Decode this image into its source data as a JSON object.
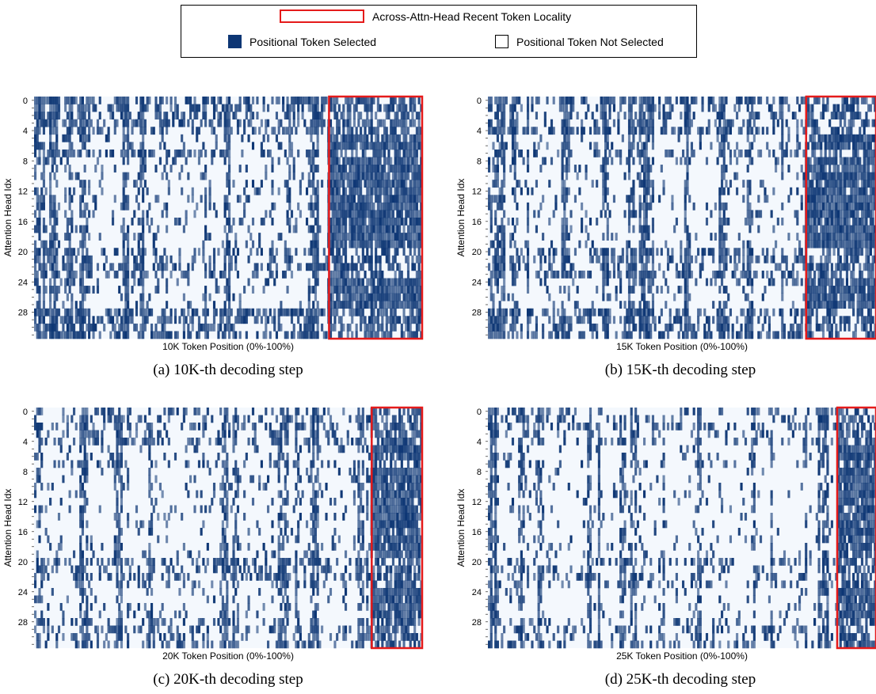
{
  "legend": {
    "locality_label": "Across-Attn-Head Recent Token Locality",
    "selected_label": "Positional Token Selected",
    "not_selected_label": "Positional Token Not Selected"
  },
  "colors": {
    "selected": "#0d3674",
    "not_selected": "#f4f8fd",
    "locality_box": "#e51a1a"
  },
  "chart_data": [
    {
      "type": "heatmap",
      "caption": "(a) 10K-th decoding step",
      "xlabel": "10K Token Position (0%-100%)",
      "ylabel": "Attention Head Idx",
      "y_ticks": [
        0,
        4,
        8,
        12,
        16,
        20,
        24,
        28
      ],
      "num_heads": 32,
      "x_range_percent": [
        0,
        100
      ],
      "recent_locality_region_percent": [
        76,
        100
      ],
      "dense_selection_heads": [
        5,
        6,
        8,
        9,
        10,
        11,
        12,
        13,
        14,
        15,
        16,
        17,
        18,
        19,
        24,
        25,
        26,
        27
      ]
    },
    {
      "type": "heatmap",
      "caption": "(b) 15K-th decoding step",
      "xlabel": "15K Token Position (0%-100%)",
      "ylabel": "Attention Head Idx",
      "y_ticks": [
        0,
        4,
        8,
        12,
        16,
        20,
        24,
        28
      ],
      "num_heads": 32,
      "x_range_percent": [
        0,
        100
      ],
      "recent_locality_region_percent": [
        82,
        100
      ],
      "dense_selection_heads": [
        5,
        6,
        8,
        9,
        10,
        11,
        12,
        13,
        14,
        15,
        16,
        17,
        18,
        19,
        24,
        25,
        26,
        27
      ]
    },
    {
      "type": "heatmap",
      "caption": "(c) 20K-th decoding step",
      "xlabel": "20K Token Position (0%-100%)",
      "ylabel": "Attention Head Idx",
      "y_ticks": [
        0,
        4,
        8,
        12,
        16,
        20,
        24,
        28
      ],
      "num_heads": 32,
      "x_range_percent": [
        0,
        100
      ],
      "recent_locality_region_percent": [
        87,
        100
      ],
      "dense_selection_heads": [
        5,
        6,
        8,
        9,
        10,
        11,
        12,
        13,
        14,
        15,
        16,
        17,
        18,
        19,
        24,
        25,
        26,
        27
      ]
    },
    {
      "type": "heatmap",
      "caption": "(d) 25K-th decoding step",
      "xlabel": "25K Token Position (0%-100%)",
      "ylabel": "Attention Head Idx",
      "y_ticks": [
        0,
        4,
        8,
        12,
        16,
        20,
        24,
        28
      ],
      "num_heads": 32,
      "x_range_percent": [
        0,
        100
      ],
      "recent_locality_region_percent": [
        90,
        100
      ],
      "dense_selection_heads": [
        5,
        6,
        8,
        9,
        10,
        11,
        12,
        13,
        14,
        15,
        16,
        17,
        18,
        19,
        24,
        25,
        26,
        27
      ]
    }
  ]
}
